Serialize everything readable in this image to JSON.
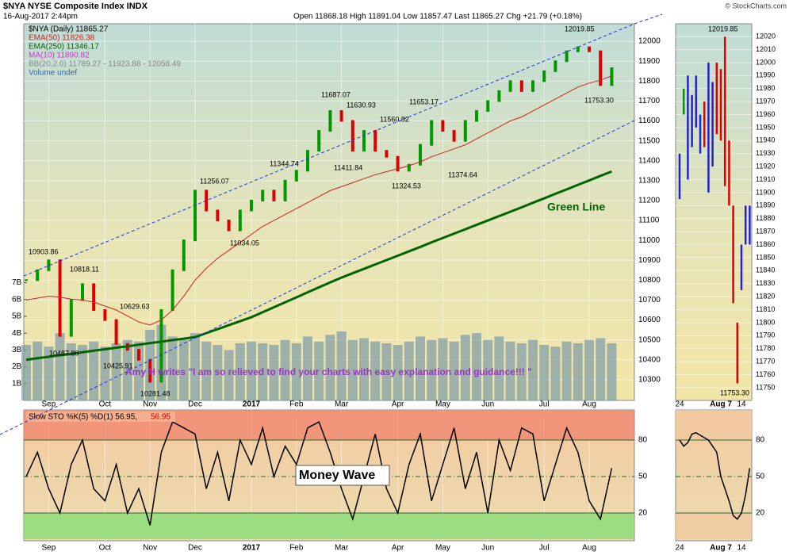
{
  "chart_data": [
    {
      "type": "price",
      "title": "$NYA NYSE Composite Index INDX",
      "subtitle": "16-Aug-2017 2:44pm",
      "info": "Open 11868.18  High 11891.04  Low 11857.47  Last 11865.27  Chg +21.79 (+0.18%)",
      "credit": "© StockCharts.com",
      "categories": [
        null,
        null,
        "Sep",
        null,
        null,
        null,
        null,
        "Oct",
        null,
        null,
        null,
        "Nov",
        null,
        null,
        null,
        "Dec",
        null,
        null,
        null,
        null,
        "2017",
        null,
        null,
        null,
        "Feb",
        null,
        null,
        null,
        "Mar",
        null,
        null,
        null,
        null,
        "Apr",
        null,
        null,
        null,
        "May",
        null,
        null,
        null,
        "Jun",
        null,
        null,
        null,
        null,
        "Jul",
        null,
        null,
        null,
        "Aug",
        null,
        null
      ],
      "ylim": [
        10196,
        12088
      ],
      "yticks": [
        10300,
        10400,
        10500,
        10600,
        10700,
        10800,
        10900,
        11000,
        11100,
        11200,
        11300,
        11400,
        11500,
        11600,
        11700,
        11800,
        11900,
        12000
      ],
      "y2lim": [
        0,
        22.4
      ],
      "y2ticks": [
        {
          "value": 1,
          "label": "1B"
        },
        {
          "value": 2,
          "label": "2B"
        },
        {
          "value": 3,
          "label": "3B"
        },
        {
          "value": 4,
          "label": "4B"
        },
        {
          "value": 5,
          "label": "5B"
        },
        {
          "value": 6,
          "label": "6B"
        },
        {
          "value": 7,
          "label": "7B"
        }
      ],
      "grid": true,
      "series": [
        {
          "name": "$NYA (Daily) 11865.27",
          "kind": "bar",
          "color": "#000000",
          "up_color": "#009900",
          "down_color": "#dd0000",
          "values": [
            10800,
            10850,
            10900,
            10520,
            10700,
            10780,
            10650,
            10600,
            10480,
            10450,
            10400,
            10290,
            10650,
            10850,
            11000,
            11250,
            11150,
            11100,
            11050,
            11150,
            11200,
            11250,
            11200,
            11300,
            11350,
            11450,
            11550,
            11650,
            11600,
            11450,
            11550,
            11450,
            11420,
            11350,
            11380,
            11480,
            11600,
            11550,
            11500,
            11600,
            11650,
            11700,
            11750,
            11800,
            11750,
            11800,
            11850,
            11900,
            11950,
            11970,
            11950,
            11780,
            11865
          ]
        },
        {
          "name": "EMA(50) 11826.38",
          "kind": "line",
          "color": "#cc2222",
          "width": 1,
          "values": [
            10700,
            10710,
            10720,
            10715,
            10705,
            10700,
            10690,
            10670,
            10650,
            10620,
            10590,
            10575,
            10600,
            10650,
            10720,
            10800,
            10860,
            10910,
            10950,
            10990,
            11030,
            11070,
            11100,
            11130,
            11160,
            11190,
            11220,
            11250,
            11270,
            11290,
            11310,
            11330,
            11345,
            11360,
            11375,
            11395,
            11420,
            11440,
            11460,
            11480,
            11510,
            11540,
            11570,
            11600,
            11620,
            11650,
            11680,
            11710,
            11740,
            11770,
            11790,
            11805,
            11826
          ]
        },
        {
          "name": "EMA(250) 11346.17",
          "kind": "line",
          "color": "#006400",
          "width": 3,
          "values": [
            10400,
            10408,
            10415,
            10423,
            10430,
            10438,
            10446,
            10453,
            10461,
            10468,
            10476,
            10484,
            10491,
            10499,
            10506,
            10514,
            10534,
            10554,
            10574,
            10594,
            10614,
            10639,
            10664,
            10689,
            10714,
            10739,
            10764,
            10789,
            10813,
            10835,
            10857,
            10879,
            10901,
            10923,
            10945,
            10967,
            10990,
            11012,
            11034,
            11056,
            11078,
            11100,
            11122,
            11144,
            11166,
            11189,
            11211,
            11234,
            11256,
            11279,
            11301,
            11324,
            11346
          ]
        },
        {
          "name": "Volume undef",
          "kind": "volume",
          "axis": "y2",
          "color": "#7a9aa8",
          "values": [
            3.3,
            3.5,
            3.2,
            4.0,
            3.4,
            3.3,
            3.5,
            3.2,
            3.4,
            3.6,
            3.5,
            4.2,
            4.5,
            3.8,
            3.6,
            4.0,
            3.5,
            3.3,
            3.0,
            3.4,
            3.5,
            3.4,
            3.3,
            3.6,
            3.4,
            3.8,
            3.5,
            3.9,
            4.1,
            3.6,
            3.7,
            3.5,
            3.4,
            3.3,
            3.5,
            3.8,
            3.6,
            3.7,
            3.5,
            3.9,
            4.0,
            3.6,
            3.8,
            3.5,
            3.4,
            3.6,
            3.3,
            3.2,
            3.5,
            3.4,
            3.6,
            3.7,
            3.4
          ]
        }
      ],
      "other_legend": [
        {
          "name": "MA(10) 11890.82",
          "color": "#cc33cc"
        },
        {
          "name": "BB(20,2.0) 11789.27 - 11923.88 - 12058.49",
          "color": "#888888"
        }
      ],
      "price_labels": [
        {
          "value": 10903.86,
          "label": "10903.86"
        },
        {
          "value": 10818.11,
          "label": "10818.11"
        },
        {
          "value": 10487.8,
          "label": "10487.80"
        },
        {
          "value": 10629.63,
          "label": "10629.63"
        },
        {
          "value": 10425.91,
          "label": "10425.91"
        },
        {
          "value": 10281.48,
          "label": "10281.48"
        },
        {
          "value": 11256.07,
          "label": "11256.07"
        },
        {
          "value": 11034.05,
          "label": "11034.05"
        },
        {
          "value": 11344.74,
          "label": "11344.74"
        },
        {
          "value": 11687.07,
          "label": "11687.07"
        },
        {
          "value": 11630.93,
          "label": "11630.93"
        },
        {
          "value": 11411.84,
          "label": "11411.84"
        },
        {
          "value": 11560.82,
          "label": "11560.82"
        },
        {
          "value": 11324.53,
          "label": "11324.53"
        },
        {
          "value": 11653.17,
          "label": "11653.17"
        },
        {
          "value": 11374.64,
          "label": "11374.64"
        },
        {
          "value": 12019.85,
          "label": "12019.85"
        },
        {
          "value": 11753.3,
          "label": "11753.30"
        }
      ],
      "annotations": [
        "Green Line",
        "Amy H writes \"I am so relieved to find your charts with easy explanation and guidance!!! \""
      ]
    },
    {
      "type": "stoch",
      "legend": "Slow STO %K(5) %D(1) 56.95,",
      "legend_value": "56.95",
      "legend_value_color": "#dd0000",
      "color": "#000000",
      "values": [
        50,
        70,
        40,
        20,
        60,
        80,
        40,
        30,
        60,
        20,
        40,
        10,
        70,
        95,
        90,
        85,
        40,
        70,
        30,
        80,
        60,
        90,
        50,
        75,
        60,
        90,
        95,
        70,
        40,
        15,
        50,
        85,
        40,
        20,
        60,
        85,
        30,
        60,
        90,
        40,
        70,
        20,
        80,
        55,
        90,
        85,
        30,
        60,
        90,
        70,
        30,
        15,
        56.95
      ],
      "ylim": [
        -2.8,
        104.8
      ],
      "yticks": [
        20,
        50,
        80
      ],
      "upper_band_color": "#f08870",
      "lower_band_color": "#88dd77",
      "annotations": [
        "Money Wave"
      ]
    },
    {
      "type": "range",
      "categories": [
        "24",
        null,
        null,
        null,
        null,
        null,
        null,
        null,
        null,
        null,
        "Aug 7",
        null,
        null,
        null,
        null,
        "14",
        null,
        null
      ],
      "high": [
        11930,
        11980,
        11990,
        11975,
        11990,
        11960,
        11970,
        12000,
        11985,
        12000,
        11995,
        12019.85,
        11940,
        11890,
        11800,
        11860,
        11890,
        11890
      ],
      "low": [
        11895,
        11960,
        11910,
        11935,
        11950,
        11930,
        11935,
        11900,
        11920,
        11945,
        11940,
        11905,
        11890,
        11815,
        11753.3,
        11825,
        11860,
        11860
      ],
      "colors": [
        "#2222cc",
        "#009900",
        "#2222cc",
        "#2222cc",
        "#2222cc",
        "#2222cc",
        "#dd0000",
        "#2222cc",
        "#2222cc",
        "#dd0000",
        "#dd0000",
        "#dd0000",
        "#dd0000",
        "#dd0000",
        "#dd0000",
        "#2222cc",
        "#2222cc",
        "#2222cc"
      ],
      "ylim": [
        11740.2,
        12029.8
      ],
      "yticks": [
        11750,
        11760,
        11770,
        11780,
        11790,
        11800,
        11810,
        11820,
        11830,
        11840,
        11850,
        11860,
        11870,
        11880,
        11890,
        11900,
        11910,
        11920,
        11930,
        11940,
        11950,
        11960,
        11970,
        11980,
        11990,
        12000,
        12010,
        12020
      ],
      "price_labels": [
        {
          "value": 12019.85,
          "label": "12019.85"
        },
        {
          "value": 11753.3,
          "label": "11753.30"
        }
      ]
    },
    {
      "type": "stoch-side",
      "color": "#000000",
      "values": [
        80,
        75,
        78,
        85,
        86,
        84,
        82,
        80,
        75,
        70,
        50,
        40,
        30,
        18,
        15,
        20,
        35,
        56.95
      ],
      "ylim": [
        -2.8,
        104.8
      ],
      "yticks": [
        20,
        50,
        80
      ],
      "upper_band_color": "#f0c8a0",
      "lower_band_color": "#f0c8a0"
    }
  ]
}
